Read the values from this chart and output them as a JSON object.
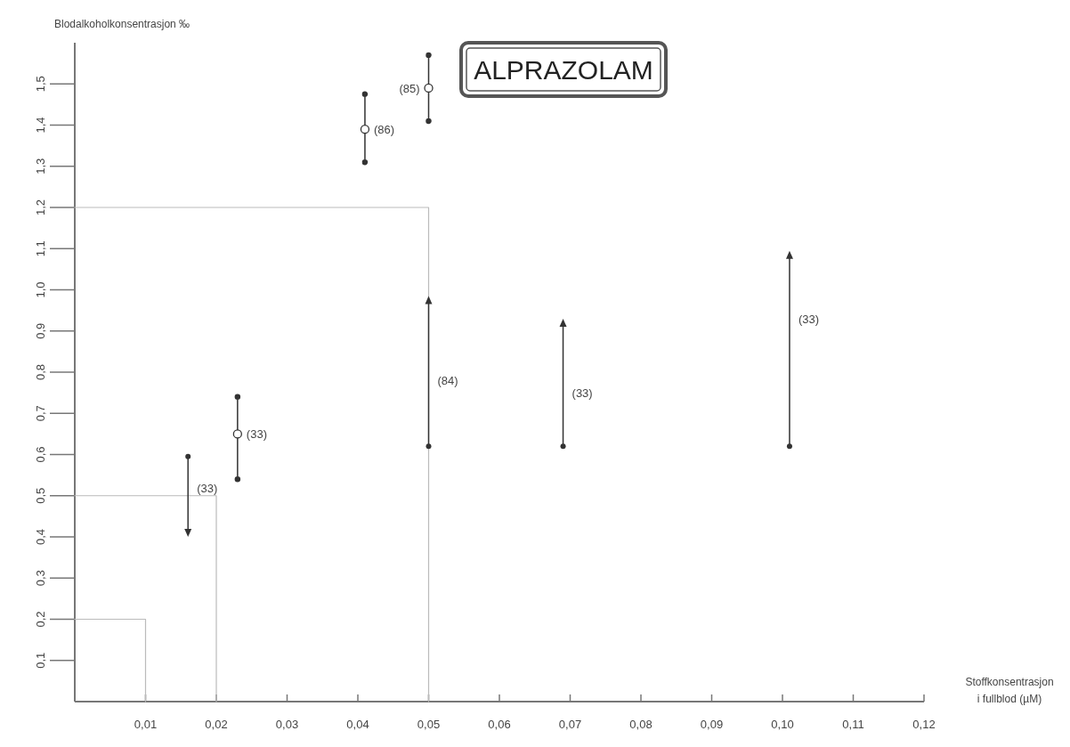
{
  "chart_data": {
    "type": "scatter",
    "title": "ALPRAZOLAM",
    "ylabel": "Blodalkoholkonsentrasjon ‰",
    "xlabel": "Stoffkonsentrasjon\ni fullblod (µM)",
    "xlim": [
      0,
      0.12
    ],
    "ylim": [
      0,
      1.6
    ],
    "xticks": [
      {
        "value": 0.01,
        "label": "0,01"
      },
      {
        "value": 0.02,
        "label": "0,02"
      },
      {
        "value": 0.03,
        "label": "0,03"
      },
      {
        "value": 0.04,
        "label": "0,04"
      },
      {
        "value": 0.05,
        "label": "0,05"
      },
      {
        "value": 0.06,
        "label": "0,06"
      },
      {
        "value": 0.07,
        "label": "0,07"
      },
      {
        "value": 0.08,
        "label": "0,08"
      },
      {
        "value": 0.09,
        "label": "0,09"
      },
      {
        "value": 0.1,
        "label": "0,10"
      },
      {
        "value": 0.11,
        "label": "0,11"
      },
      {
        "value": 0.12,
        "label": "0,12"
      }
    ],
    "yticks": [
      {
        "value": 0.1,
        "label": "0,1"
      },
      {
        "value": 0.2,
        "label": "0,2"
      },
      {
        "value": 0.3,
        "label": "0,3"
      },
      {
        "value": 0.4,
        "label": "0,4"
      },
      {
        "value": 0.5,
        "label": "0,5"
      },
      {
        "value": 0.6,
        "label": "0,6"
      },
      {
        "value": 0.7,
        "label": "0,7"
      },
      {
        "value": 0.8,
        "label": "0,8"
      },
      {
        "value": 0.9,
        "label": "0,9"
      },
      {
        "value": 1.0,
        "label": "1,0"
      },
      {
        "value": 1.1,
        "label": "1,1"
      },
      {
        "value": 1.2,
        "label": "1,2"
      },
      {
        "value": 1.3,
        "label": "1,3"
      },
      {
        "value": 1.4,
        "label": "1,4"
      },
      {
        "value": 1.5,
        "label": "1,5"
      }
    ],
    "series": [
      {
        "type": "line",
        "color": "#bbbbbb",
        "marker": "none",
        "x": [
          0,
          0.01,
          0.01
        ],
        "values": [
          0.2,
          0.2,
          0
        ]
      },
      {
        "type": "line",
        "color": "#bbbbbb",
        "marker": "none",
        "x": [
          0,
          0.02,
          0.02
        ],
        "values": [
          0.5,
          0.5,
          0
        ]
      },
      {
        "type": "line",
        "color": "#bbbbbb",
        "marker": "none",
        "x": [
          0,
          0.05,
          0.05
        ],
        "values": [
          1.2,
          1.2,
          0
        ]
      },
      {
        "type": "line",
        "color": "#333333",
        "marker": "circle",
        "x": [
          0.016,
          0.016
        ],
        "values": [
          0.595,
          0.41
        ]
      },
      {
        "type": "line",
        "color": "#333333",
        "marker": "circle",
        "x": [
          0.05,
          0.05
        ],
        "values": [
          0.62,
          0.975
        ]
      },
      {
        "type": "line",
        "color": "#333333",
        "marker": "circle",
        "x": [
          0.069,
          0.069
        ],
        "values": [
          0.62,
          0.92
        ]
      },
      {
        "type": "line",
        "color": "#333333",
        "marker": "circle",
        "x": [
          0.101,
          0.101
        ],
        "values": [
          0.62,
          1.085
        ]
      },
      {
        "color": "#333333",
        "marker": "circle",
        "x": [
          0.023,
          0.041,
          0.05
        ],
        "values": [
          0.65,
          1.39,
          1.49
        ],
        "errors": [
          [
            0.54,
            0.74
          ],
          [
            1.31,
            1.475
          ],
          [
            1.41,
            1.57
          ]
        ]
      }
    ],
    "annotations": [
      {
        "text": "(33)",
        "x": 0.016,
        "y": 0.52
      },
      {
        "text": "(33)",
        "x": 0.023,
        "y": 0.65
      },
      {
        "text": "(86)",
        "x": 0.041,
        "y": 1.39
      },
      {
        "text": "(85)",
        "x": 0.05,
        "y": 1.49
      },
      {
        "text": "(84)",
        "x": 0.05,
        "y": 0.78
      },
      {
        "text": "(33)",
        "x": 0.069,
        "y": 0.75
      },
      {
        "text": "(33)",
        "x": 0.101,
        "y": 0.93
      }
    ]
  }
}
